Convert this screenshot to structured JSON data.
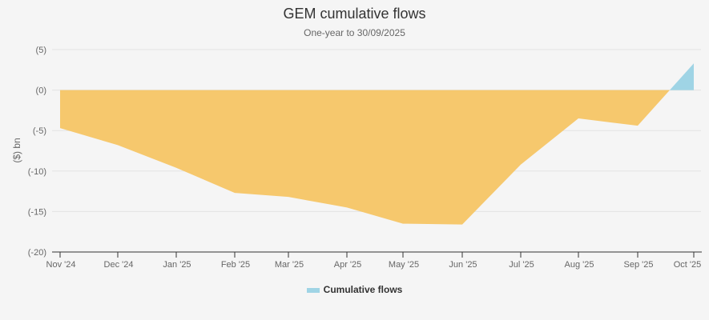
{
  "header": {
    "title": "GEM cumulative flows",
    "subtitle": "One-year to 30/09/2025"
  },
  "legend": {
    "label": "Cumulative flows",
    "color": "#9fd4e5"
  },
  "colors": {
    "negative": "#f6c86d",
    "positive": "#9fd4e5",
    "grid": "#e3e3e3",
    "axis": "#333333"
  },
  "chart_data": {
    "type": "area",
    "title": "GEM cumulative flows",
    "subtitle": "One-year to 30/09/2025",
    "xlabel": "",
    "ylabel": "($) bn",
    "ylim": [
      -20,
      5
    ],
    "yticks": [
      5,
      0,
      -5,
      -10,
      -15,
      -20
    ],
    "ytick_labels": [
      "(5)",
      "(0)",
      "(-5)",
      "(-10)",
      "(-15)",
      "(-20)"
    ],
    "categories": [
      "Nov '24",
      "Dec '24",
      "Jan '25",
      "Feb '25",
      "Mar '25",
      "Apr '25",
      "May '25",
      "Jun '25",
      "Jul '25",
      "Aug '25",
      "Sep '25",
      "Oct '25"
    ],
    "series": [
      {
        "name": "Cumulative flows",
        "values": [
          -4.7,
          -6.8,
          -9.6,
          -12.7,
          -13.2,
          -14.5,
          -16.5,
          -16.6,
          -9.2,
          -3.5,
          -4.4,
          3.3
        ]
      }
    ],
    "negative_color": "#f6c86d",
    "positive_color": "#9fd4e5",
    "grid": true,
    "legend_position": "bottom"
  }
}
